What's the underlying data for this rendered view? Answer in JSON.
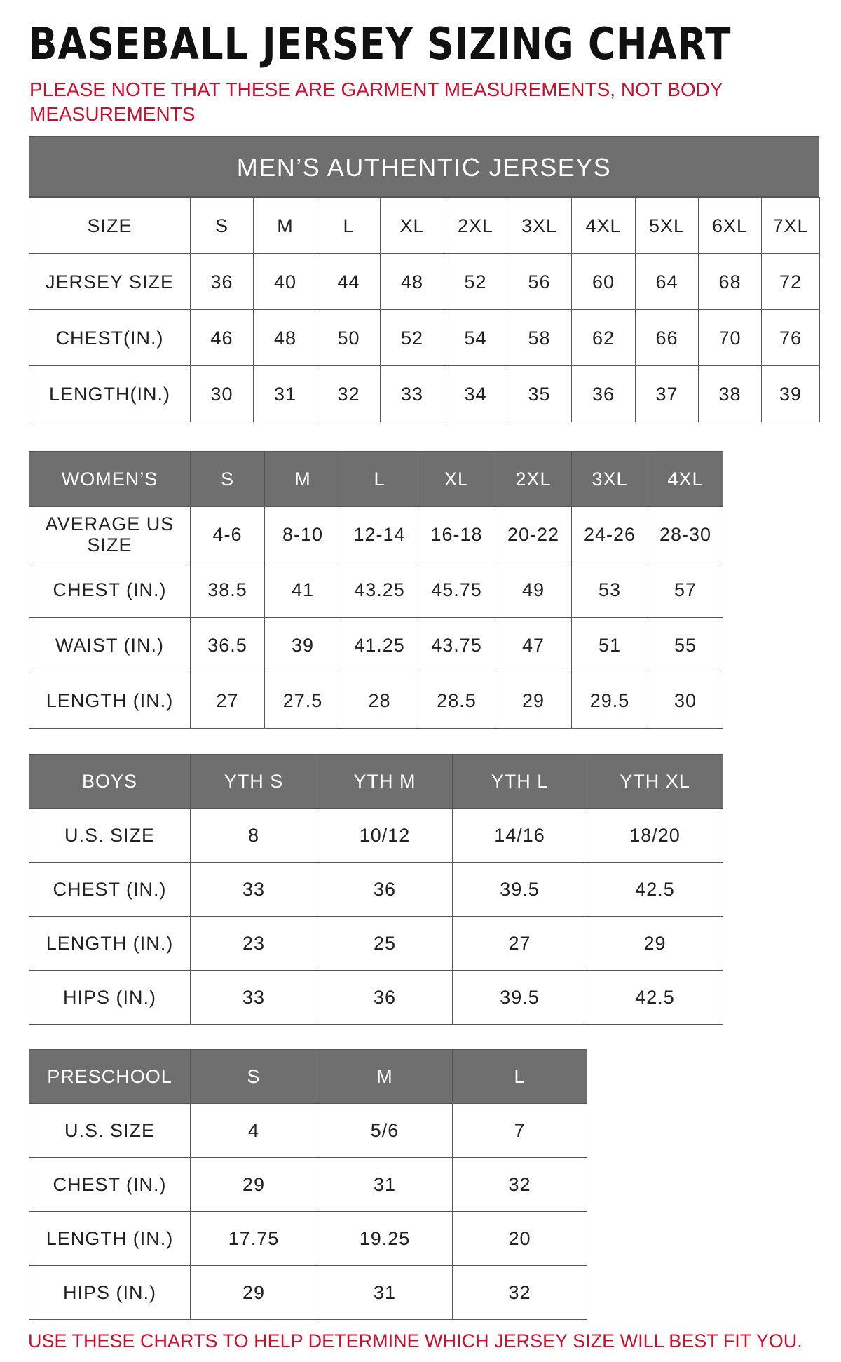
{
  "title": "BASEBALL JERSEY SIZING CHART",
  "note": "PLEASE NOTE THAT THESE ARE GARMENT MEASUREMENTS, NOT BODY MEASUREMENTS",
  "tables": [
    {
      "title": "MEN’S AUTHENTIC JERSEYS",
      "header": [
        "SIZE",
        "S",
        "M",
        "L",
        "XL",
        "2XL",
        "3XL",
        "4XL",
        "5XL",
        "6XL",
        "7XL"
      ],
      "rows": [
        [
          "JERSEY SIZE",
          "36",
          "40",
          "44",
          "48",
          "52",
          "56",
          "60",
          "64",
          "68",
          "72"
        ],
        [
          "CHEST(IN.)",
          "46",
          "48",
          "50",
          "52",
          "54",
          "58",
          "62",
          "66",
          "70",
          "76"
        ],
        [
          "LENGTH(IN.)",
          "30",
          "31",
          "32",
          "33",
          "34",
          "35",
          "36",
          "37",
          "38",
          "39"
        ]
      ]
    },
    {
      "header": [
        "WOMEN’S",
        "S",
        "M",
        "L",
        "XL",
        "2XL",
        "3XL",
        "4XL"
      ],
      "rows": [
        [
          "AVERAGE US SIZE",
          "4-6",
          "8-10",
          "12-14",
          "16-18",
          "20-22",
          "24-26",
          "28-30"
        ],
        [
          "CHEST (IN.)",
          "38.5",
          "41",
          "43.25",
          "45.75",
          "49",
          "53",
          "57"
        ],
        [
          "WAIST (IN.)",
          "36.5",
          "39",
          "41.25",
          "43.75",
          "47",
          "51",
          "55"
        ],
        [
          "LENGTH (IN.)",
          "27",
          "27.5",
          "28",
          "28.5",
          "29",
          "29.5",
          "30"
        ]
      ]
    },
    {
      "header": [
        "BOYS",
        "YTH S",
        "YTH M",
        "YTH L",
        "YTH XL"
      ],
      "rows": [
        [
          "U.S. SIZE",
          "8",
          "10/12",
          "14/16",
          "18/20"
        ],
        [
          "CHEST (IN.)",
          "33",
          "36",
          "39.5",
          "42.5"
        ],
        [
          "LENGTH (IN.)",
          "23",
          "25",
          "27",
          "29"
        ],
        [
          "HIPS (IN.)",
          "33",
          "36",
          "39.5",
          "42.5"
        ]
      ]
    },
    {
      "header": [
        "PRESCHOOL",
        "S",
        "M",
        "L"
      ],
      "rows": [
        [
          "U.S. SIZE",
          "4",
          "5/6",
          "7"
        ],
        [
          "CHEST (IN.)",
          "29",
          "31",
          "32"
        ],
        [
          "LENGTH (IN.)",
          "17.75",
          "19.25",
          "20"
        ],
        [
          "HIPS (IN.)",
          "29",
          "31",
          "32"
        ]
      ]
    }
  ],
  "footer": "USE THESE CHARTS TO HELP DETERMINE WHICH JERSEY SIZE WILL BEST FIT YOU."
}
